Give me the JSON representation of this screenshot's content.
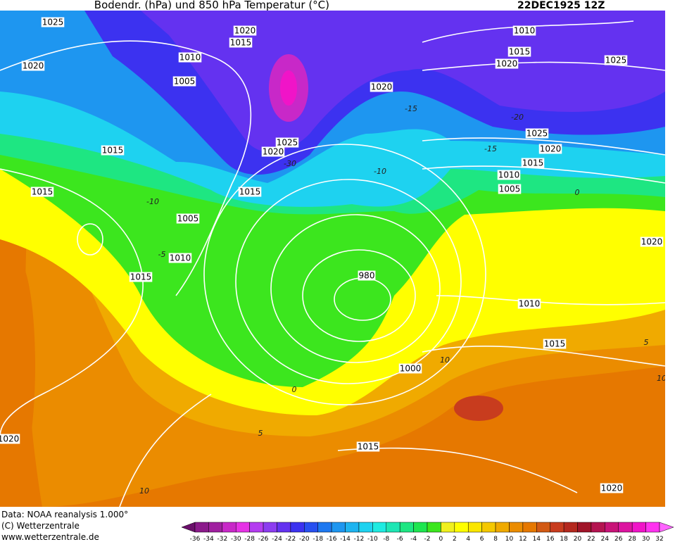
{
  "header": {
    "title": "Bodendr. (hPa) und 850 hPa Temperatur (°C)",
    "date": "22DEC1925 12Z"
  },
  "isobar_labels": [
    "1025",
    "1020",
    "1015",
    "1010",
    "1020",
    "1005",
    "1020",
    "1010",
    "1015",
    "1020",
    "1025",
    "1015",
    "1020",
    "1025",
    "1015",
    "1015",
    "1005",
    "1010",
    "1015",
    "980",
    "1025",
    "1020",
    "1015",
    "1010",
    "1005",
    "1020",
    "1010",
    "1015",
    "1000",
    "1020",
    "1015",
    "1020"
  ],
  "temperature_labels": [
    "-10",
    "-5",
    "0",
    "5",
    "10",
    "-15",
    "-15",
    "-10",
    "0",
    "5",
    "10",
    "10",
    "-20",
    "-30"
  ],
  "colorbar": {
    "ticks": [
      -36,
      -34,
      -32,
      -30,
      -28,
      -26,
      -24,
      -22,
      -20,
      -18,
      -16,
      -14,
      -12,
      -10,
      -8,
      -6,
      -4,
      -2,
      0,
      2,
      4,
      6,
      8,
      10,
      12,
      14,
      16,
      18,
      20,
      22,
      24,
      26,
      28,
      30,
      32
    ],
    "colors": [
      "#6b0f6b",
      "#8b1a8b",
      "#a020a0",
      "#c828c8",
      "#e632e6",
      "#b43cf0",
      "#8c3cf0",
      "#6432f0",
      "#3c32f0",
      "#2850f0",
      "#1e78f0",
      "#1e96f0",
      "#1eb4f0",
      "#1ed2f0",
      "#1eebe1",
      "#1ee6b4",
      "#1ee682",
      "#1ee650",
      "#3ce61e",
      "#f0f01e",
      "#ffff00",
      "#fae600",
      "#f5c800",
      "#f0aa00",
      "#eb8c00",
      "#e67800",
      "#d25a14",
      "#c83c1e",
      "#b4281e",
      "#a01428",
      "#b41450",
      "#c81478",
      "#dc14a0",
      "#f014c8",
      "#ff32f0",
      "#ff64ff"
    ]
  },
  "footer": [
    "Data: NOAA reanalysis 1.000°",
    "(C) Wetterzentrale",
    "www.wetterzentrale.de"
  ]
}
